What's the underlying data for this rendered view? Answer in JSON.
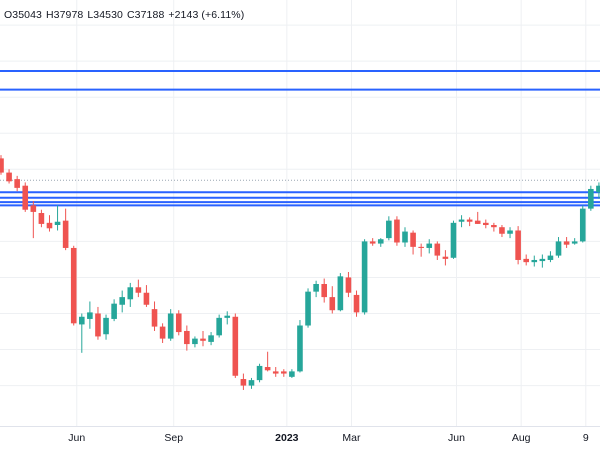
{
  "ohlc": {
    "open": "O35043",
    "high": "H37978",
    "low": "L34530",
    "close": "C37188",
    "change": "+2143 (+6.11%)"
  },
  "colors": {
    "up": "#26a69a",
    "down": "#ef5350",
    "level": "#2962ff",
    "grid": "#eef0f3",
    "dotted": "#9aa6b2"
  },
  "chart_data": {
    "type": "candlestick",
    "x_labels": [
      "Jun",
      "Sep",
      "2023",
      "Mar",
      "Jun",
      "Aug",
      "9"
    ],
    "x_label_positions_week": [
      9.5,
      21.5,
      35.5,
      43.5,
      56.5,
      64.5,
      72.5
    ],
    "bold_label": "2023",
    "horizontal_levels": [
      48500,
      46800,
      37400,
      36900,
      36500,
      36200
    ],
    "dotted_level": 38500,
    "ylim": [
      16000,
      55000
    ],
    "candles": [
      [
        40500,
        40800,
        39000,
        39200
      ],
      [
        39200,
        39500,
        38200,
        38400
      ],
      [
        38600,
        38900,
        37500,
        37800
      ],
      [
        38000,
        38300,
        35600,
        35800
      ],
      [
        36200,
        36600,
        33200,
        35600
      ],
      [
        35500,
        35800,
        34200,
        34500
      ],
      [
        34600,
        35300,
        33800,
        34100
      ],
      [
        34400,
        36200,
        33900,
        34700
      ],
      [
        34800,
        35900,
        32100,
        32300
      ],
      [
        32300,
        32500,
        25200,
        25400
      ],
      [
        25300,
        26300,
        22700,
        26000
      ],
      [
        25800,
        27400,
        24900,
        26400
      ],
      [
        26300,
        26900,
        23900,
        24200
      ],
      [
        24400,
        26200,
        23900,
        25900
      ],
      [
        25800,
        27600,
        25600,
        27200
      ],
      [
        27100,
        28400,
        26400,
        27800
      ],
      [
        27600,
        29100,
        26900,
        28700
      ],
      [
        28700,
        29400,
        27800,
        28200
      ],
      [
        28200,
        28900,
        26900,
        27100
      ],
      [
        26700,
        27400,
        24700,
        25100
      ],
      [
        25100,
        25400,
        23600,
        24000
      ],
      [
        24000,
        26700,
        23800,
        26300
      ],
      [
        26300,
        26600,
        24300,
        24600
      ],
      [
        24700,
        25200,
        22900,
        23500
      ],
      [
        23500,
        24200,
        23200,
        24000
      ],
      [
        24000,
        24700,
        23300,
        23800
      ],
      [
        23700,
        24600,
        23400,
        24300
      ],
      [
        24300,
        26200,
        24100,
        25900
      ],
      [
        25900,
        26500,
        25300,
        26100
      ],
      [
        26000,
        26300,
        20400,
        20600
      ],
      [
        20300,
        20800,
        19300,
        19700
      ],
      [
        19700,
        20400,
        19400,
        20200
      ],
      [
        20200,
        21700,
        20000,
        21500
      ],
      [
        21400,
        22800,
        21000,
        21100
      ],
      [
        21000,
        21400,
        20500,
        20800
      ],
      [
        21000,
        21200,
        20500,
        20800
      ],
      [
        20500,
        21200,
        20400,
        21000
      ],
      [
        21000,
        25700,
        20900,
        25200
      ],
      [
        25200,
        28600,
        25000,
        28300
      ],
      [
        28300,
        29300,
        27800,
        29000
      ],
      [
        29000,
        29500,
        27300,
        27800
      ],
      [
        27800,
        28800,
        26300,
        26600
      ],
      [
        26600,
        30000,
        26500,
        29700
      ],
      [
        29600,
        30100,
        27800,
        28200
      ],
      [
        28000,
        28400,
        26000,
        26400
      ],
      [
        26400,
        33100,
        26200,
        32900
      ],
      [
        32900,
        33200,
        32500,
        32700
      ],
      [
        32700,
        33200,
        32400,
        33100
      ],
      [
        33200,
        35200,
        33000,
        34800
      ],
      [
        34900,
        35200,
        32500,
        32800
      ],
      [
        32800,
        34200,
        32400,
        33800
      ],
      [
        33700,
        33900,
        31700,
        32400
      ],
      [
        32400,
        32700,
        31500,
        32300
      ],
      [
        32300,
        33100,
        31800,
        32700
      ],
      [
        32700,
        32900,
        31200,
        31600
      ],
      [
        31500,
        32100,
        30700,
        31300
      ],
      [
        31400,
        34800,
        31300,
        34600
      ],
      [
        34700,
        35300,
        34200,
        34900
      ],
      [
        34900,
        35100,
        34300,
        34700
      ],
      [
        34800,
        35600,
        34500,
        34500
      ],
      [
        34600,
        34900,
        34100,
        34400
      ],
      [
        34400,
        34600,
        33800,
        34200
      ],
      [
        34200,
        34400,
        33300,
        33600
      ],
      [
        33600,
        34200,
        33200,
        33900
      ],
      [
        33900,
        34300,
        30800,
        31200
      ],
      [
        31300,
        31700,
        30700,
        31000
      ],
      [
        31000,
        31600,
        30600,
        31200
      ],
      [
        31100,
        31700,
        30500,
        31300
      ],
      [
        31200,
        32000,
        31000,
        31600
      ],
      [
        31600,
        33300,
        31400,
        32900
      ],
      [
        32900,
        33300,
        32300,
        32600
      ],
      [
        32700,
        33200,
        32600,
        32900
      ],
      [
        32900,
        36200,
        32800,
        35900
      ],
      [
        35900,
        38000,
        35700,
        37700
      ],
      [
        37400,
        38300,
        36800,
        38000
      ]
    ]
  }
}
